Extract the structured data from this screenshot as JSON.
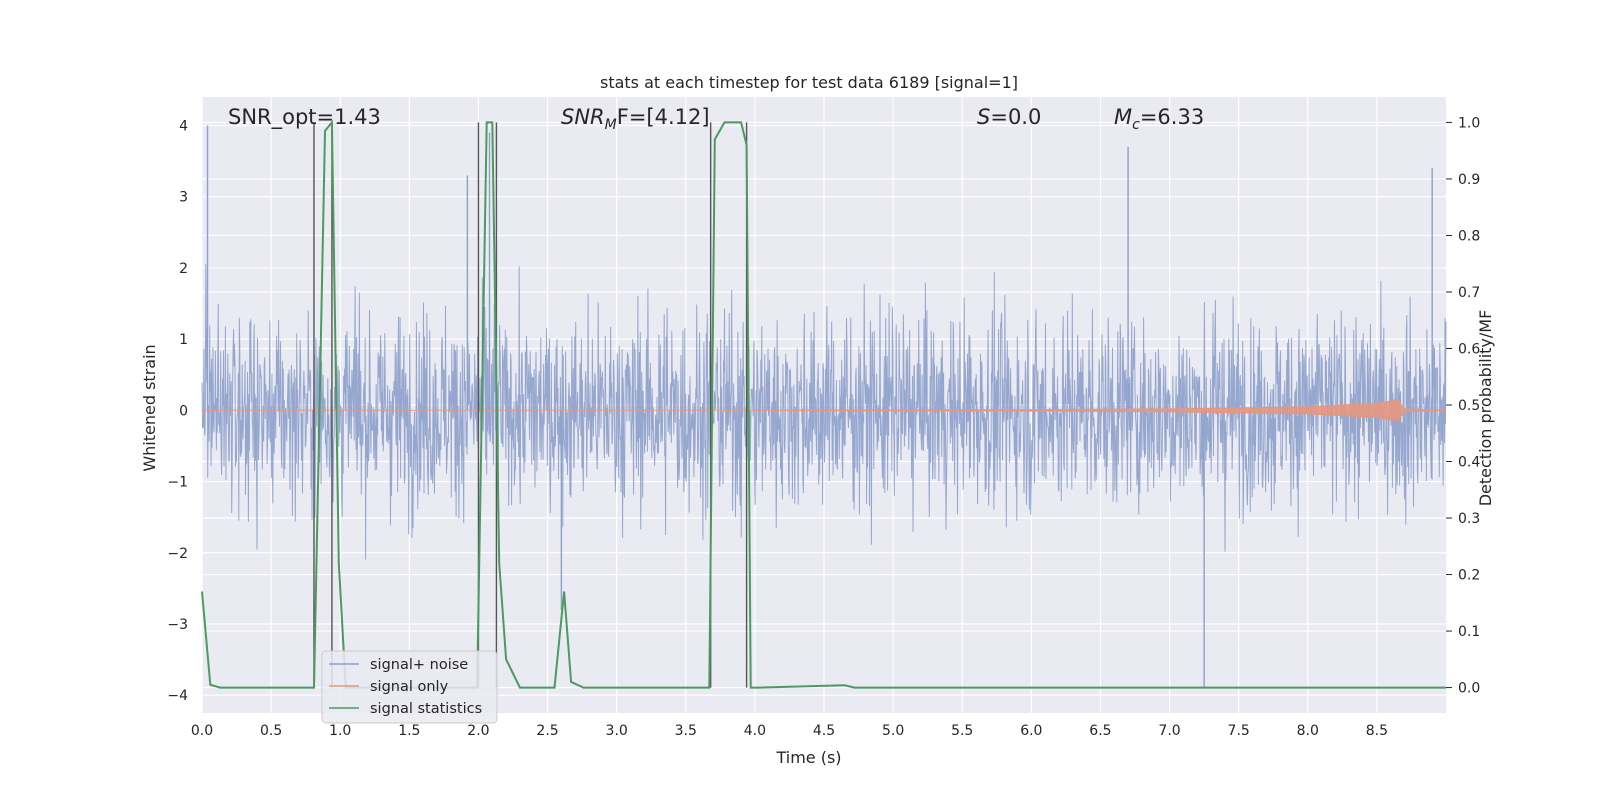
{
  "chart_data": {
    "type": "line",
    "title": "stats at each timestep for test data 6189 [signal=1]",
    "xlabel": "Time (s)",
    "ylabel_left": "Whitened strain",
    "ylabel_right": "Detection probability/MF",
    "xlim": [
      0,
      9
    ],
    "ylim_left": [
      -4.25,
      4.4
    ],
    "ylim_right": [
      -0.045,
      1.045
    ],
    "x_ticks": [
      "0.0",
      "0.5",
      "1.0",
      "1.5",
      "2.0",
      "2.5",
      "3.0",
      "3.5",
      "4.0",
      "4.5",
      "5.0",
      "5.5",
      "6.0",
      "6.5",
      "7.0",
      "7.5",
      "8.0",
      "8.5"
    ],
    "y_ticks_left": [
      "−4",
      "−3",
      "−2",
      "−1",
      "0",
      "1",
      "2",
      "3",
      "4"
    ],
    "y_ticks_right": [
      "0.0",
      "0.1",
      "0.2",
      "0.3",
      "0.4",
      "0.5",
      "0.6",
      "0.7",
      "0.8",
      "0.9",
      "1.0"
    ],
    "grid": true,
    "legend_position": "lower-left",
    "annotations": {
      "snr_opt": "SNR_opt=1.43",
      "snr_mf_italic": "SNR",
      "snr_mf_sub": "M",
      "snr_mf_rest": "F=[4.12]",
      "s_italic": "S",
      "s_rest": "=0.0",
      "mc_italic": "M",
      "mc_sub": "c",
      "mc_rest": "=6.33"
    },
    "vertical_lines_s": [
      0.81,
      0.94,
      2.0,
      2.13,
      3.68,
      3.94
    ],
    "colors": {
      "signal_noise": "#8da0cb",
      "signal_only": "#e5977e",
      "signal_statistics": "#4c9a5f",
      "background": "#eaeaf2",
      "grid": "#ffffff",
      "vline": "#555555"
    },
    "series": [
      {
        "name": "signal+ noise",
        "noise_envelope": {
          "x": [
            0.0,
            0.5,
            1.0,
            1.5,
            2.0,
            2.5,
            3.0,
            3.5,
            4.0,
            4.5,
            5.0,
            5.5,
            6.0,
            6.5,
            7.0,
            7.5,
            8.0,
            8.5,
            9.0
          ],
          "typical_peak": 2.4,
          "max_peak": 4.0
        },
        "notable_peaks": [
          {
            "x": 0.04,
            "y": 4.0
          },
          {
            "x": 1.92,
            "y": 3.3
          },
          {
            "x": 2.08,
            "y": 3.9
          },
          {
            "x": 2.6,
            "y": -2.8
          },
          {
            "x": 6.7,
            "y": 3.7
          },
          {
            "x": 7.25,
            "y": -3.9
          },
          {
            "x": 8.9,
            "y": 3.4
          }
        ]
      },
      {
        "name": "signal only",
        "x": [
          0.0,
          1.0,
          2.0,
          3.0,
          4.0,
          5.0,
          6.0,
          7.0,
          8.0,
          8.3,
          8.5,
          8.6,
          8.65,
          8.7,
          9.0
        ],
        "y": [
          0.0,
          0.0,
          0.0,
          0.0,
          0.0,
          0.005,
          0.01,
          0.02,
          0.05,
          0.08,
          0.1,
          0.13,
          0.15,
          0.02,
          0.0
        ]
      },
      {
        "name": "signal statistics",
        "x": [
          0.0,
          0.06,
          0.13,
          0.81,
          0.89,
          0.94,
          0.99,
          1.04,
          1.99,
          2.06,
          2.1,
          2.15,
          2.2,
          2.3,
          2.55,
          2.62,
          2.67,
          2.76,
          3.67,
          3.71,
          3.78,
          3.9,
          3.94,
          3.97,
          4.02,
          4.65,
          4.72,
          4.8,
          9.0
        ],
        "y": [
          0.17,
          0.005,
          0.0,
          0.0,
          0.985,
          1.0,
          0.22,
          0.0,
          0.0,
          1.0,
          1.0,
          0.22,
          0.05,
          0.0,
          0.0,
          0.17,
          0.01,
          0.0,
          0.0,
          0.97,
          1.0,
          1.0,
          0.96,
          0.0,
          0.0,
          0.004,
          0.0,
          0.0,
          0.0
        ]
      }
    ]
  }
}
